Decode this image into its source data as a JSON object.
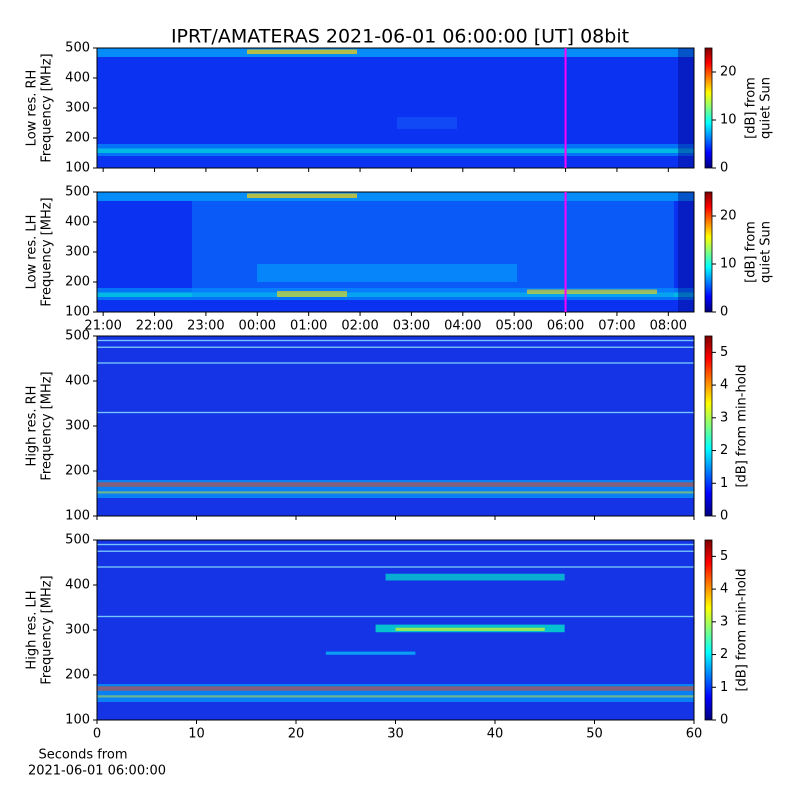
{
  "suptitle": "IPRT/AMATERAS 2021-06-01 06:00:00 [UT]   08bit",
  "chart_data": [
    {
      "type": "heatmap",
      "y_label": [
        "Low res. RH",
        "Frequency [MHz]"
      ],
      "xlim": [
        20.88,
        32.5
      ],
      "ylim": [
        100,
        500
      ],
      "yticks": [
        100,
        200,
        300,
        400,
        500
      ],
      "vline": 30,
      "vline_color": "#ff00ff",
      "colorbar": {
        "label": [
          "[dB] from",
          "quiet Sun"
        ],
        "lim": [
          0,
          25
        ],
        "ticks": [
          0,
          10,
          20
        ],
        "colormap": "jet"
      }
    },
    {
      "type": "heatmap",
      "y_label": [
        "Low res. LH",
        "Frequency [MHz]"
      ],
      "xlim": [
        20.88,
        32.5
      ],
      "ylim": [
        100,
        500
      ],
      "yticks": [
        100,
        200,
        300,
        400,
        500
      ],
      "xticks": [
        {
          "value": 21,
          "label": "21:00"
        },
        {
          "value": 22,
          "label": "22:00"
        },
        {
          "value": 23,
          "label": "23:00"
        },
        {
          "value": 24,
          "label": "00:00"
        },
        {
          "value": 25,
          "label": "01:00"
        },
        {
          "value": 26,
          "label": "02:00"
        },
        {
          "value": 27,
          "label": "03:00"
        },
        {
          "value": 28,
          "label": "04:00"
        },
        {
          "value": 29,
          "label": "05:00"
        },
        {
          "value": 30,
          "label": "06:00"
        },
        {
          "value": 31,
          "label": "07:00"
        },
        {
          "value": 32,
          "label": "08:00"
        }
      ],
      "vline": 30,
      "vline_color": "#ff00ff",
      "colorbar": {
        "label": [
          "[dB] from",
          "quiet Sun"
        ],
        "lim": [
          0,
          25
        ],
        "ticks": [
          0,
          10,
          20
        ],
        "colormap": "jet"
      }
    },
    {
      "type": "heatmap",
      "y_label": [
        "High res. RH",
        "Frequency [MHz]"
      ],
      "xlim": [
        0,
        60
      ],
      "ylim": [
        100,
        500
      ],
      "yticks": [
        100,
        200,
        300,
        400,
        500
      ],
      "colorbar": {
        "label": [
          "[dB] from min-hold"
        ],
        "lim": [
          0,
          5.5
        ],
        "ticks": [
          0,
          1,
          2,
          3,
          4,
          5
        ],
        "colormap": "jet"
      }
    },
    {
      "type": "heatmap",
      "y_label": [
        "High res. LH",
        "Frequency [MHz]"
      ],
      "xlim": [
        0,
        60
      ],
      "ylim": [
        100,
        500
      ],
      "yticks": [
        100,
        200,
        300,
        400,
        500
      ],
      "xticks": [
        0,
        10,
        20,
        30,
        40,
        50,
        60
      ],
      "x_label": [
        "Seconds from",
        "2021-06-01 06:00:00"
      ],
      "colorbar": {
        "label": [
          "[dB] from min-hold"
        ],
        "lim": [
          0,
          5.5
        ],
        "ticks": [
          0,
          1,
          2,
          3,
          4,
          5
        ],
        "colormap": "jet"
      }
    }
  ]
}
